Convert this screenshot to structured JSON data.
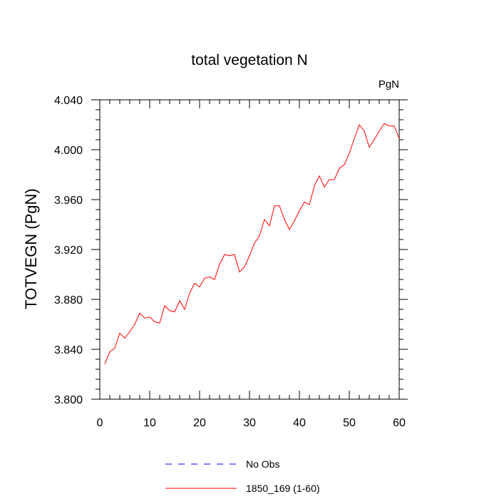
{
  "chart_data": {
    "type": "line",
    "title": "total vegetation N",
    "units_label": "PgN",
    "xlabel": "",
    "ylabel": "TOTVEGN  (PgN)",
    "xlim": [
      0,
      60
    ],
    "ylim": [
      3.8,
      4.04
    ],
    "x_ticks": [
      0,
      10,
      20,
      30,
      40,
      50,
      60
    ],
    "y_ticks": [
      3.8,
      3.84,
      3.88,
      3.92,
      3.96,
      4.0,
      4.04
    ],
    "y_tick_labels": [
      "3.800",
      "3.840",
      "3.880",
      "3.920",
      "3.960",
      "4.000",
      "4.040"
    ],
    "grid": false,
    "legend_position": "bottom-center",
    "series": [
      {
        "name": "No Obs",
        "color": "#0000ff",
        "dashed": true,
        "x": [],
        "values": []
      },
      {
        "name": "1850_169 (1-60)",
        "color": "#ff0000",
        "dashed": false,
        "x": [
          1,
          2,
          3,
          4,
          5,
          6,
          7,
          8,
          9,
          10,
          11,
          12,
          13,
          14,
          15,
          16,
          17,
          18,
          19,
          20,
          21,
          22,
          23,
          24,
          25,
          26,
          27,
          28,
          29,
          30,
          31,
          32,
          33,
          34,
          35,
          36,
          37,
          38,
          39,
          40,
          41,
          42,
          43,
          44,
          45,
          46,
          47,
          48,
          49,
          50,
          51,
          52,
          53,
          54,
          55,
          56,
          57,
          58,
          59,
          60
        ],
        "values": [
          3.828,
          3.838,
          3.841,
          3.853,
          3.849,
          3.854,
          3.86,
          3.869,
          3.865,
          3.866,
          3.862,
          3.861,
          3.875,
          3.871,
          3.87,
          3.879,
          3.872,
          3.885,
          3.893,
          3.89,
          3.897,
          3.898,
          3.896,
          3.908,
          3.916,
          3.915,
          3.916,
          3.902,
          3.906,
          3.915,
          3.925,
          3.931,
          3.944,
          3.939,
          3.955,
          3.955,
          3.944,
          3.936,
          3.943,
          3.951,
          3.958,
          3.956,
          3.971,
          3.979,
          3.97,
          3.976,
          3.976,
          3.985,
          3.988,
          3.997,
          4.009,
          4.02,
          4.015,
          4.002,
          4.008,
          4.015,
          4.021,
          4.019,
          4.019,
          4.009
        ]
      }
    ]
  }
}
